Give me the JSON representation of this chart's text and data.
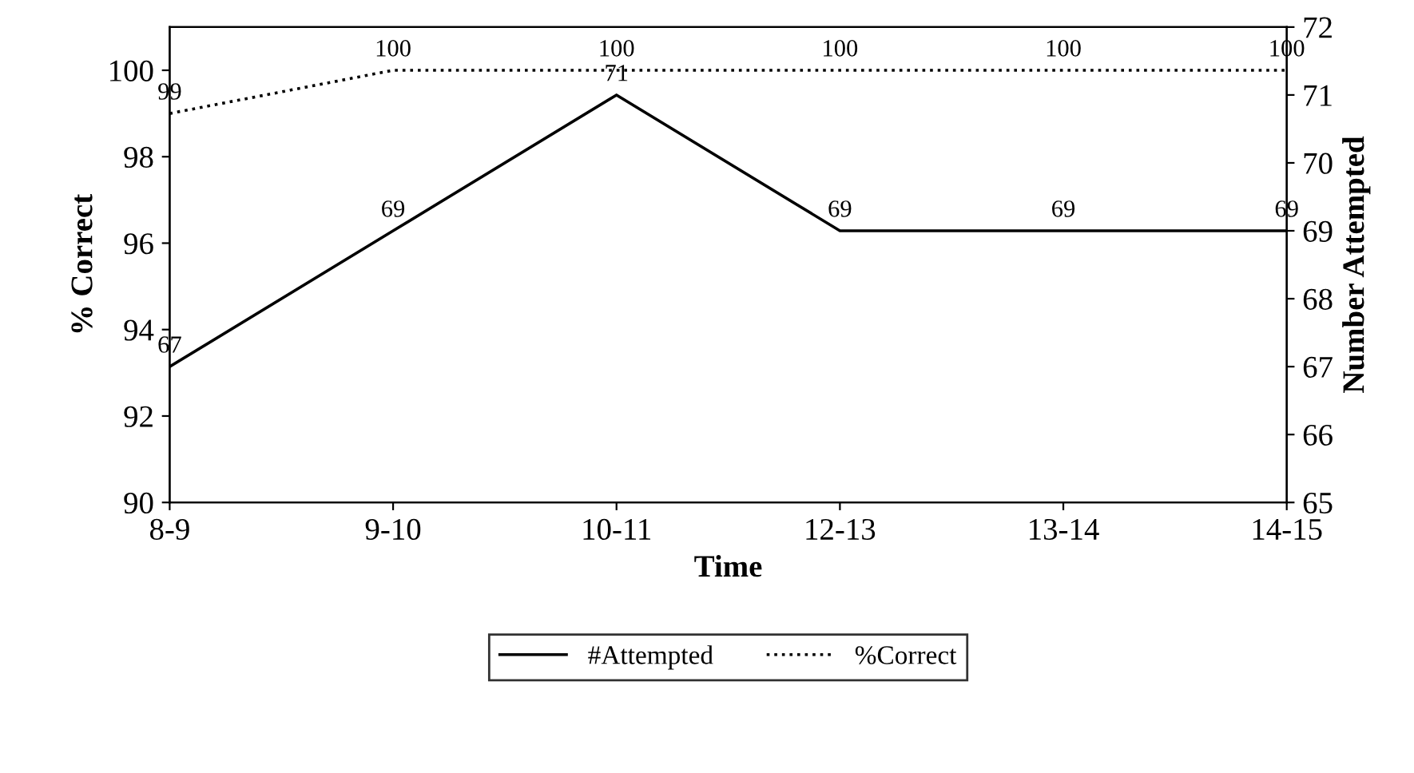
{
  "chart_data": {
    "type": "line",
    "xlabel": "Time",
    "ylabel": "% Correct",
    "y2label": "Number Attempted",
    "categories": [
      "8-9",
      "9-10",
      "10-11",
      "12-13",
      "13-14",
      "14-15"
    ],
    "series": [
      {
        "name": "#Attempted",
        "color": "#000000",
        "axis": "y2",
        "line_style": "solid",
        "values": [
          67,
          69,
          71,
          69,
          69,
          69
        ]
      },
      {
        "name": "%Correct",
        "color": "#000000",
        "line_style": "dotted",
        "values": [
          99,
          100,
          100,
          100,
          100,
          100
        ]
      }
    ],
    "ylim": [
      90,
      101
    ],
    "yticks": [
      90,
      92,
      94,
      96,
      98,
      100
    ],
    "y2lim": [
      65,
      72
    ],
    "y2ticks": [
      65,
      66,
      67,
      68,
      69,
      70,
      71,
      72
    ],
    "data_labels": true,
    "grid": false,
    "legend": "bottom",
    "marker": "none"
  }
}
